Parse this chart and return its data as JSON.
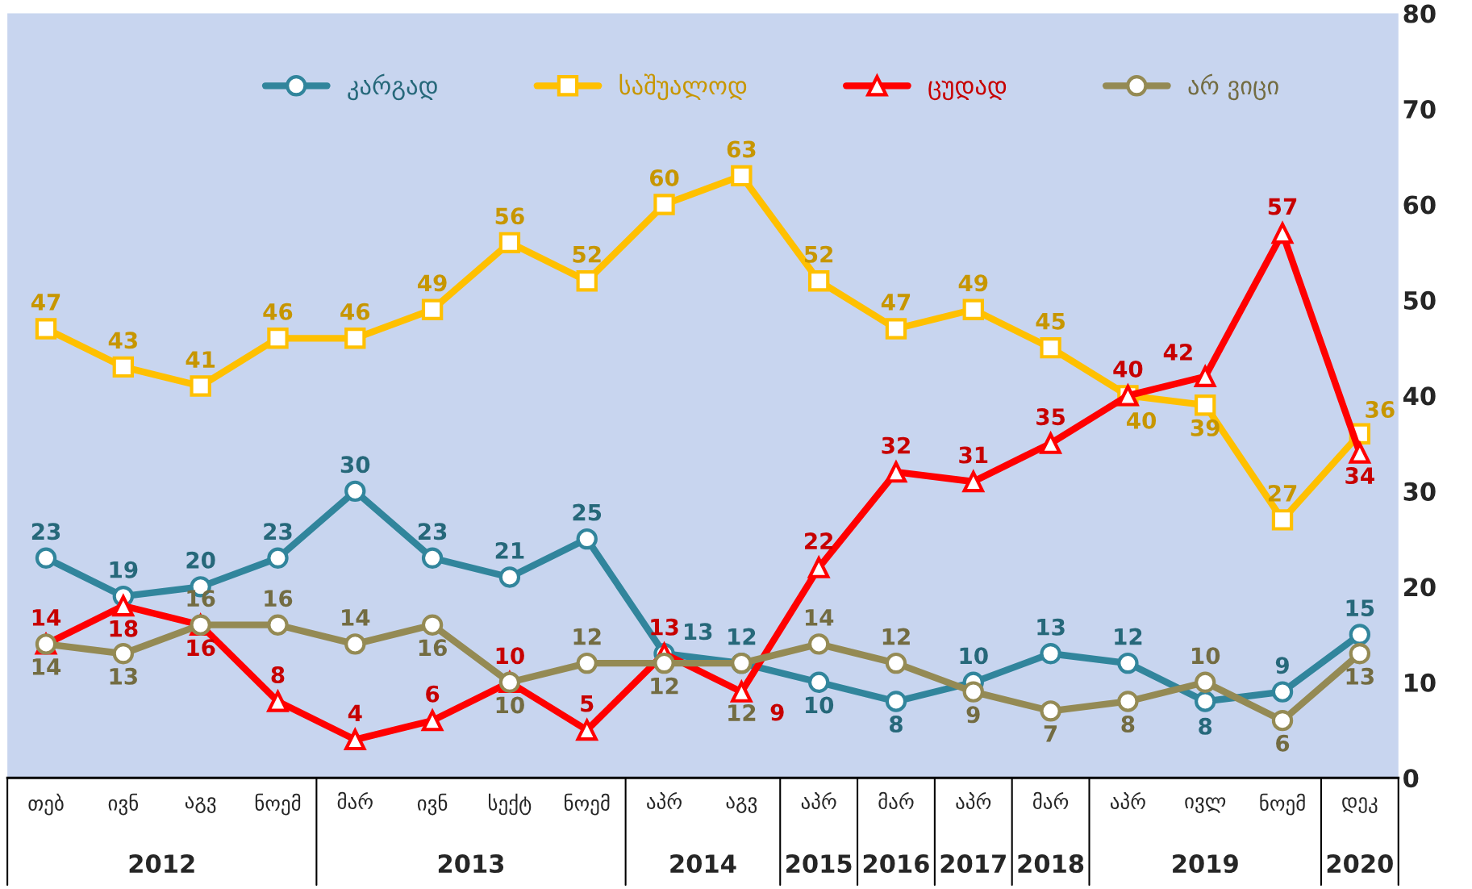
{
  "chart_data": {
    "type": "line",
    "categories": [
      "თებ",
      "ივნ",
      "აგვ",
      "ნოემ",
      "მარ",
      "ივნ",
      "სექტ",
      "ნოემ",
      "აპრ",
      "აგვ",
      "აპრ",
      "მარ",
      "აპრ",
      "მარ",
      "აპრ",
      "ივლ",
      "ნოემ",
      "დეკ"
    ],
    "series": [
      {
        "name": "კარგად",
        "color": "#31859c",
        "marker": "circle",
        "values": [
          23,
          19,
          20,
          23,
          30,
          23,
          21,
          25,
          13,
          12,
          10,
          8,
          10,
          13,
          12,
          8,
          9,
          15
        ]
      },
      {
        "name": "საშუალოდ",
        "color": "#ffc000",
        "marker": "square",
        "values": [
          47,
          43,
          41,
          46,
          46,
          49,
          56,
          52,
          60,
          63,
          52,
          47,
          49,
          45,
          40,
          39,
          27,
          36
        ]
      },
      {
        "name": "ცუდად",
        "color": "#ff0000",
        "marker": "triangle",
        "values": [
          14,
          18,
          16,
          8,
          4,
          6,
          10,
          5,
          13,
          9,
          22,
          32,
          31,
          35,
          40,
          42,
          57,
          34
        ]
      },
      {
        "name": "არ ვიცი",
        "color": "#948a54",
        "marker": "circle",
        "values": [
          14,
          13,
          16,
          16,
          14,
          16,
          10,
          12,
          12,
          12,
          14,
          12,
          9,
          7,
          8,
          10,
          6,
          13
        ]
      }
    ],
    "annotations": [
      "2012",
      "2013",
      "2014",
      "2015",
      "2016",
      "2017",
      "2018",
      "2019",
      "2020"
    ],
    "ylim": [
      0,
      80
    ],
    "yticks": [
      0,
      10,
      20,
      30,
      40,
      50,
      60,
      70,
      80
    ],
    "grid": false,
    "legend": "top",
    "data_labels": true,
    "line_style": "solid"
  }
}
